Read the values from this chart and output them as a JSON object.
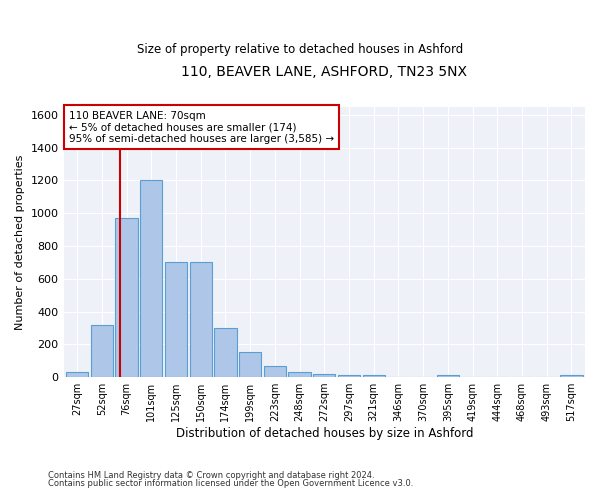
{
  "title": "110, BEAVER LANE, ASHFORD, TN23 5NX",
  "subtitle": "Size of property relative to detached houses in Ashford",
  "xlabel": "Distribution of detached houses by size in Ashford",
  "ylabel": "Number of detached properties",
  "bar_color": "#aec6e8",
  "bar_edge_color": "#5a9fd4",
  "categories": [
    "27sqm",
    "52sqm",
    "76sqm",
    "101sqm",
    "125sqm",
    "150sqm",
    "174sqm",
    "199sqm",
    "223sqm",
    "248sqm",
    "272sqm",
    "297sqm",
    "321sqm",
    "346sqm",
    "370sqm",
    "395sqm",
    "419sqm",
    "444sqm",
    "468sqm",
    "493sqm",
    "517sqm"
  ],
  "values": [
    30,
    320,
    970,
    1200,
    700,
    700,
    300,
    150,
    70,
    30,
    20,
    15,
    15,
    0,
    0,
    15,
    0,
    0,
    0,
    0,
    15
  ],
  "ylim": [
    0,
    1650
  ],
  "yticks": [
    0,
    200,
    400,
    600,
    800,
    1000,
    1200,
    1400,
    1600
  ],
  "marker_label": "110 BEAVER LANE: 70sqm",
  "annotation_line1": "← 5% of detached houses are smaller (174)",
  "annotation_line2": "95% of semi-detached houses are larger (3,585) →",
  "annotation_box_color": "#ffffff",
  "annotation_box_edge": "#cc0000",
  "vline_color": "#cc0000",
  "background_color": "#eef2f8",
  "grid_color": "#ffffff",
  "footer1": "Contains HM Land Registry data © Crown copyright and database right 2024.",
  "footer2": "Contains public sector information licensed under the Open Government Licence v3.0."
}
